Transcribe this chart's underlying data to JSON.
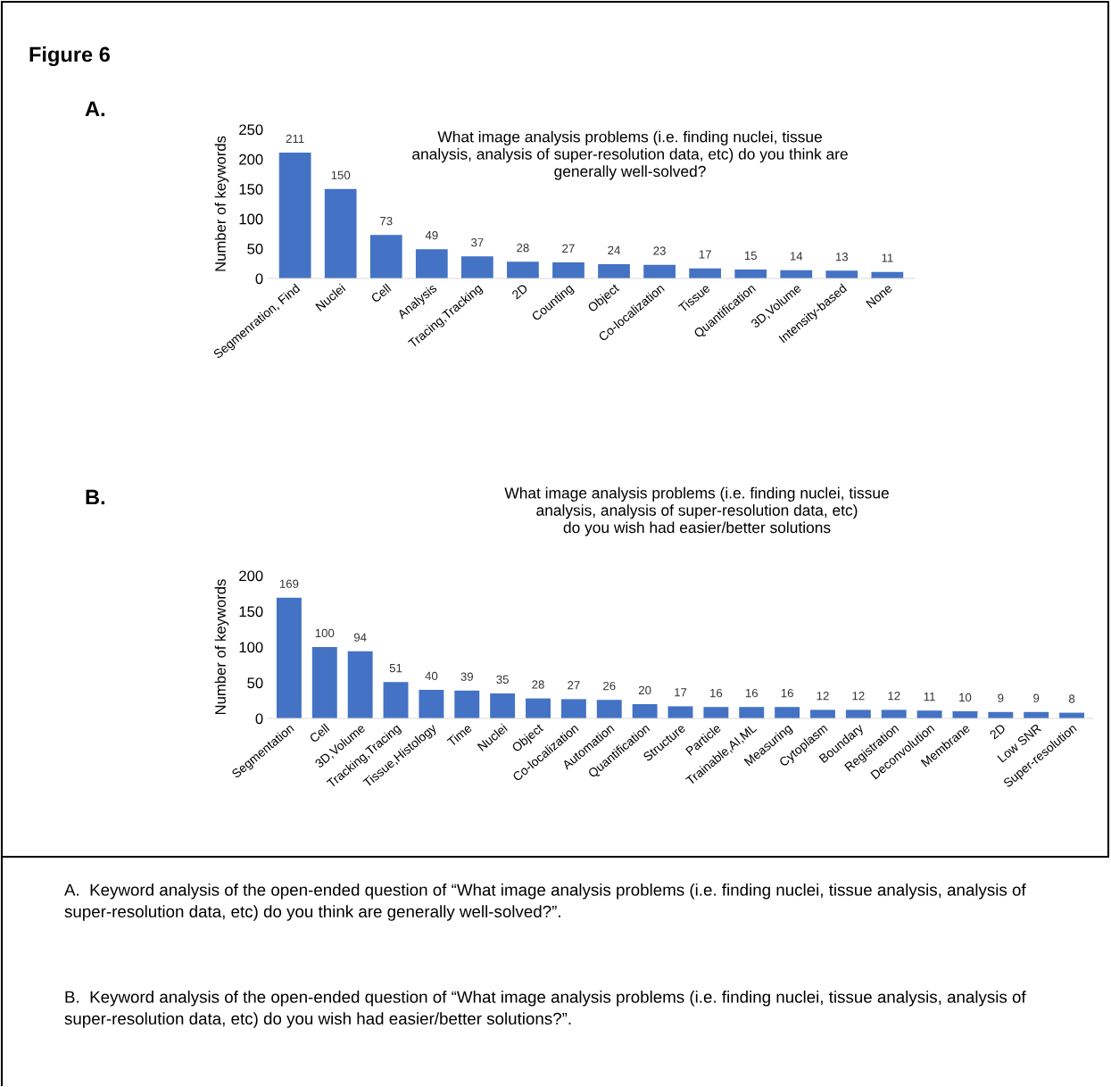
{
  "chart_data": [
    {
      "type": "bar",
      "title": "What image analysis problems (i.e. finding nuclei, tissue\nanalysis, analysis of super-resolution data, etc) do you think are\ngenerally well-solved?",
      "ylabel": "Number of keywords",
      "categories": [
        "Segmenration, Find",
        "Nuclei",
        "Cell",
        "Analysis",
        "Tracing,Tracking",
        "2D",
        "Counting",
        "Object",
        "Co-localization",
        "Tissue",
        "Quantification",
        "3D,Volume",
        "Intensity-based",
        "None"
      ],
      "values": [
        211,
        150,
        73,
        49,
        37,
        28,
        27,
        24,
        23,
        17,
        15,
        14,
        13,
        11
      ],
      "color": "#4472c4",
      "ylim": [
        0,
        250
      ],
      "yticks": [
        0,
        50,
        100,
        150,
        200,
        250
      ],
      "grid": false,
      "data_labels": true,
      "annotations": [
        "Figure 6",
        "A.",
        "A.  Keyword analysis of the open-ended question of “What image analysis problems (i.e. finding nuclei, tissue analysis, analysis of super-resolution data, etc) do you think are generally well-solved?”."
      ]
    },
    {
      "type": "bar",
      "title": "What image analysis problems (i.e. finding nuclei, tissue\nanalysis, analysis of super-resolution data, etc)\ndo you wish had easier/better solutions",
      "ylabel": "Number of keywords",
      "categories": [
        "Segmentation",
        "Cell",
        "3D,Volume",
        "Tracking,Tracing",
        "Tissue,Histology",
        "Time",
        "Nuclei",
        "Object",
        "Co-localization",
        "Automation",
        "Quantification",
        "Structure",
        "Particle",
        "Trainable,AI,ML",
        "Measuring",
        "Cytoplasm",
        "Boundary",
        "Registration",
        "Deconvolution",
        "Membrane",
        "2D",
        "Low SNR",
        "Super-resolution"
      ],
      "values": [
        169,
        100,
        94,
        51,
        40,
        39,
        35,
        28,
        27,
        26,
        20,
        17,
        16,
        16,
        16,
        12,
        12,
        12,
        11,
        10,
        9,
        9,
        8
      ],
      "color": "#4472c4",
      "ylim": [
        0,
        200
      ],
      "yticks": [
        0,
        50,
        100,
        150,
        200
      ],
      "grid": false,
      "data_labels": true,
      "annotations": [
        "B.",
        "B.  Keyword analysis of the open-ended question of “What image analysis problems (i.e. finding nuclei, tissue analysis, analysis of super-resolution data, etc) do you wish had easier/better solutions?”."
      ]
    }
  ]
}
